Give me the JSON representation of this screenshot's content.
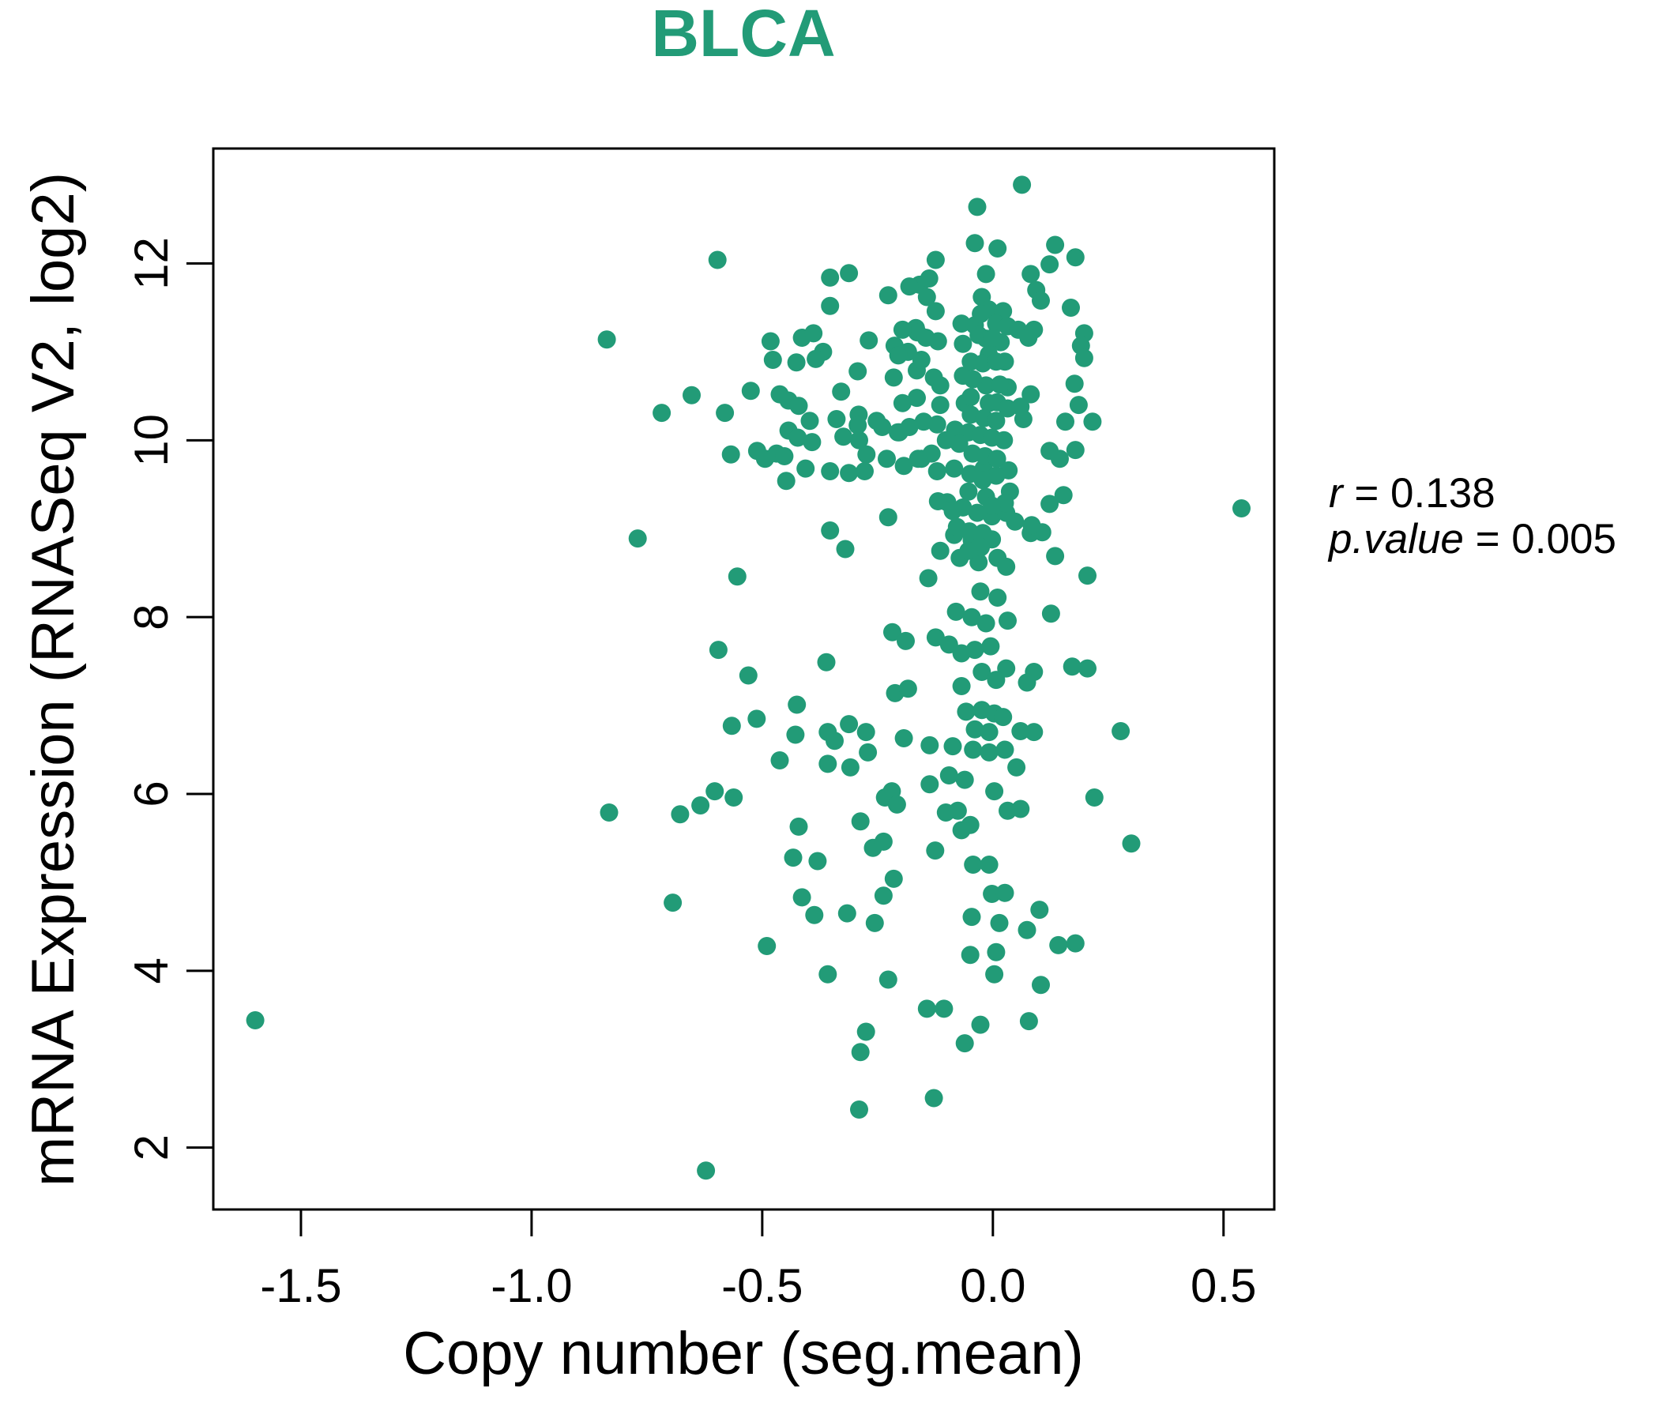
{
  "title": "BLCA",
  "colors": {
    "accent": "#229b77",
    "point": "#229b77",
    "axis": "#000000",
    "background": "#ffffff"
  },
  "stats": {
    "r_label": "r",
    "r_value": " = 0.138",
    "p_label": "p.value",
    "p_value": " = 0.005"
  },
  "chart_data": {
    "type": "scatter",
    "title": "BLCA",
    "xlabel": "Copy number (seg.mean)",
    "ylabel": "mRNA Expression (RNASeq V2, log2)",
    "xlim": [
      -1.69,
      0.61
    ],
    "ylim": [
      1.3,
      13.3
    ],
    "x_ticks": [
      "-1.5",
      "-1.0",
      "-0.5",
      "0.0",
      "0.5"
    ],
    "x_tick_values": [
      -1.5,
      -1.0,
      -0.5,
      0.0,
      0.5
    ],
    "y_ticks": [
      "2",
      "4",
      "6",
      "8",
      "10",
      "12"
    ],
    "y_tick_values": [
      2,
      4,
      6,
      8,
      10,
      12
    ],
    "grid": false,
    "legend": "none",
    "marker": "filled-circle",
    "point_radius_px": 11.5,
    "annotations": [
      "r = 0.138",
      "p.value = 0.005"
    ],
    "correlation": {
      "r": 0.138,
      "p_value": 0.005
    },
    "points": [
      [
        -0.597,
        12.04
      ],
      [
        -0.837,
        11.14
      ],
      [
        -0.482,
        11.12
      ],
      [
        -0.414,
        11.16
      ],
      [
        -0.389,
        11.21
      ],
      [
        -0.368,
        11.0
      ],
      [
        -0.426,
        10.88
      ],
      [
        -0.477,
        10.91
      ],
      [
        -0.384,
        10.92
      ],
      [
        -0.269,
        11.13
      ],
      [
        -0.213,
        11.07
      ],
      [
        -0.184,
        11.0
      ],
      [
        -0.167,
        11.27
      ],
      [
        -0.525,
        10.56
      ],
      [
        -0.462,
        10.52
      ],
      [
        -0.443,
        10.45
      ],
      [
        -0.421,
        10.39
      ],
      [
        -0.653,
        10.51
      ],
      [
        -0.718,
        10.31
      ],
      [
        -0.581,
        10.31
      ],
      [
        -0.329,
        10.55
      ],
      [
        -0.291,
        10.29
      ],
      [
        -0.24,
        10.15
      ],
      [
        -0.397,
        10.22
      ],
      [
        -0.443,
        10.11
      ],
      [
        -0.423,
        10.03
      ],
      [
        -0.392,
        9.98
      ],
      [
        -0.324,
        10.04
      ],
      [
        -0.29,
        10.0
      ],
      [
        -0.568,
        9.84
      ],
      [
        -0.511,
        9.88
      ],
      [
        -0.494,
        9.79
      ],
      [
        -0.469,
        9.85
      ],
      [
        -0.452,
        9.82
      ],
      [
        -0.312,
        9.63
      ],
      [
        -0.274,
        9.84
      ],
      [
        -0.448,
        9.54
      ],
      [
        -0.77,
        8.89
      ],
      [
        -0.554,
        8.46
      ],
      [
        -0.595,
        7.63
      ],
      [
        -0.53,
        7.34
      ],
      [
        -0.566,
        6.77
      ],
      [
        -0.562,
        5.96
      ],
      [
        -0.603,
        6.03
      ],
      [
        -0.634,
        5.87
      ],
      [
        -0.678,
        5.77
      ],
      [
        -0.832,
        5.79
      ],
      [
        -0.694,
        4.77
      ],
      [
        -1.599,
        3.44
      ],
      [
        -0.622,
        1.74
      ],
      [
        0.063,
        12.89
      ],
      [
        -0.034,
        12.64
      ],
      [
        -0.039,
        12.23
      ],
      [
        0.01,
        12.17
      ],
      [
        0.135,
        12.21
      ],
      [
        0.179,
        12.07
      ],
      [
        0.123,
        11.99
      ],
      [
        -0.124,
        12.04
      ],
      [
        -0.353,
        11.84
      ],
      [
        -0.312,
        11.89
      ],
      [
        -0.015,
        11.88
      ],
      [
        0.082,
        11.88
      ],
      [
        0.094,
        11.7
      ],
      [
        -0.227,
        11.64
      ],
      [
        -0.159,
        11.76
      ],
      [
        -0.143,
        11.62
      ],
      [
        -0.124,
        11.46
      ],
      [
        -0.024,
        11.62
      ],
      [
        -0.009,
        11.48
      ],
      [
        0.022,
        11.46
      ],
      [
        0.104,
        11.58
      ],
      [
        0.169,
        11.5
      ],
      [
        -0.353,
        11.52
      ],
      [
        -0.068,
        11.32
      ],
      [
        -0.039,
        11.3
      ],
      [
        0.007,
        11.32
      ],
      [
        0.032,
        11.29
      ],
      [
        0.089,
        11.25
      ],
      [
        0.198,
        11.21
      ],
      [
        -0.065,
        11.09
      ],
      [
        -0.015,
        11.15
      ],
      [
        0.017,
        11.11
      ],
      [
        -0.009,
        10.97
      ],
      [
        0.026,
        10.89
      ],
      [
        0.191,
        11.07
      ],
      [
        0.198,
        10.93
      ],
      [
        -0.293,
        10.78
      ],
      [
        -0.215,
        10.71
      ],
      [
        -0.165,
        10.79
      ],
      [
        -0.114,
        10.62
      ],
      [
        -0.065,
        10.73
      ],
      [
        -0.015,
        10.62
      ],
      [
        0.032,
        10.6
      ],
      [
        0.082,
        10.52
      ],
      [
        -0.009,
        10.42
      ],
      [
        -0.061,
        10.42
      ],
      [
        -0.114,
        10.4
      ],
      [
        -0.165,
        10.48
      ],
      [
        -0.196,
        10.42
      ],
      [
        -0.339,
        10.24
      ],
      [
        0.066,
        10.24
      ],
      [
        0.157,
        10.21
      ],
      [
        0.216,
        10.21
      ],
      [
        0.145,
        9.79
      ],
      [
        0.179,
        9.89
      ],
      [
        -0.406,
        9.68
      ],
      [
        -0.353,
        9.65
      ],
      [
        -0.278,
        9.65
      ],
      [
        -0.23,
        9.79
      ],
      [
        -0.193,
        9.71
      ],
      [
        -0.155,
        9.79
      ],
      [
        -0.121,
        9.65
      ],
      [
        -0.084,
        9.68
      ],
      [
        -0.049,
        9.62
      ],
      [
        -0.02,
        9.68
      ],
      [
        -0.053,
        9.42
      ],
      [
        -0.015,
        9.36
      ],
      [
        -0.099,
        9.3
      ],
      [
        -0.065,
        9.24
      ],
      [
        -0.034,
        9.18
      ],
      [
        -0.002,
        9.14
      ],
      [
        0.029,
        9.18
      ],
      [
        0.048,
        9.08
      ],
      [
        -0.227,
        9.13
      ],
      [
        0.123,
        9.28
      ],
      [
        0.539,
        9.23
      ],
      [
        -0.084,
        8.93
      ],
      [
        -0.046,
        8.87
      ],
      [
        -0.002,
        8.88
      ],
      [
        0.082,
        8.95
      ],
      [
        0.107,
        8.96
      ],
      [
        -0.114,
        8.75
      ],
      [
        -0.072,
        8.67
      ],
      [
        -0.031,
        8.62
      ],
      [
        0.01,
        8.67
      ],
      [
        0.029,
        8.57
      ],
      [
        -0.14,
        8.44
      ],
      [
        -0.353,
        8.98
      ],
      [
        -0.32,
        8.77
      ],
      [
        -0.027,
        8.29
      ],
      [
        0.01,
        8.22
      ],
      [
        -0.08,
        8.06
      ],
      [
        -0.046,
        8.0
      ],
      [
        -0.015,
        7.93
      ],
      [
        0.032,
        7.96
      ],
      [
        0.205,
        8.47
      ],
      [
        0.126,
        8.04
      ],
      [
        -0.218,
        7.83
      ],
      [
        -0.189,
        7.73
      ],
      [
        -0.124,
        7.77
      ],
      [
        -0.095,
        7.69
      ],
      [
        -0.068,
        7.59
      ],
      [
        -0.039,
        7.63
      ],
      [
        -0.005,
        7.67
      ],
      [
        0.029,
        7.42
      ],
      [
        0.089,
        7.38
      ],
      [
        0.172,
        7.44
      ],
      [
        0.205,
        7.42
      ],
      [
        -0.024,
        7.38
      ],
      [
        -0.361,
        7.49
      ],
      [
        -0.293,
        10.17
      ],
      [
        -0.252,
        10.22
      ],
      [
        -0.203,
        10.09
      ],
      [
        -0.138,
        11.83
      ],
      [
        -0.181,
        11.74
      ],
      [
        -0.026,
        11.43
      ],
      [
        -0.164,
        11.22
      ],
      [
        -0.196,
        11.25
      ],
      [
        -0.145,
        11.16
      ],
      [
        -0.119,
        11.12
      ],
      [
        -0.031,
        11.19
      ],
      [
        0.0,
        11.16
      ],
      [
        0.055,
        11.25
      ],
      [
        0.077,
        11.16
      ],
      [
        -0.205,
        10.96
      ],
      [
        -0.155,
        10.91
      ],
      [
        -0.128,
        10.71
      ],
      [
        -0.048,
        10.89
      ],
      [
        -0.022,
        10.87
      ],
      [
        0.007,
        10.89
      ],
      [
        -0.043,
        10.69
      ],
      [
        0.015,
        10.63
      ],
      [
        -0.048,
        10.49
      ],
      [
        0.009,
        10.43
      ],
      [
        -0.048,
        10.29
      ],
      [
        -0.019,
        10.25
      ],
      [
        0.007,
        10.22
      ],
      [
        0.032,
        10.36
      ],
      [
        0.06,
        10.38
      ],
      [
        -0.082,
        10.12
      ],
      [
        -0.053,
        10.09
      ],
      [
        -0.027,
        10.06
      ],
      [
        -0.002,
        10.03
      ],
      [
        0.024,
        10.0
      ],
      [
        -0.121,
        10.18
      ],
      [
        -0.15,
        10.21
      ],
      [
        -0.181,
        10.15
      ],
      [
        -0.206,
        10.09
      ],
      [
        -0.102,
        10.0
      ],
      [
        -0.073,
        9.96
      ],
      [
        -0.044,
        9.85
      ],
      [
        -0.017,
        9.82
      ],
      [
        0.009,
        9.79
      ],
      [
        -0.133,
        9.85
      ],
      [
        -0.162,
        9.79
      ],
      [
        0.034,
        9.66
      ],
      [
        0.007,
        9.6
      ],
      [
        -0.022,
        9.55
      ],
      [
        0.037,
        9.42
      ],
      [
        0.026,
        9.29
      ],
      [
        -0.002,
        9.26
      ],
      [
        -0.119,
        9.31
      ],
      [
        0.084,
        9.04
      ],
      [
        0.177,
        10.64
      ],
      [
        0.186,
        10.4
      ],
      [
        0.123,
        9.88
      ],
      [
        0.153,
        9.38
      ],
      [
        -0.078,
        9.02
      ],
      [
        -0.051,
        8.97
      ],
      [
        -0.022,
        8.95
      ],
      [
        -0.026,
        8.79
      ],
      [
        -0.053,
        8.75
      ],
      [
        0.135,
        8.69
      ],
      [
        -0.087,
        9.2
      ],
      [
        -0.512,
        6.85
      ],
      [
        -0.425,
        7.01
      ],
      [
        -0.428,
        6.67
      ],
      [
        -0.462,
        6.38
      ],
      [
        -0.358,
        6.7
      ],
      [
        -0.343,
        6.6
      ],
      [
        -0.312,
        6.79
      ],
      [
        -0.275,
        6.7
      ],
      [
        -0.271,
        6.47
      ],
      [
        -0.358,
        6.34
      ],
      [
        -0.309,
        6.3
      ],
      [
        -0.212,
        7.14
      ],
      [
        -0.184,
        7.19
      ],
      [
        -0.068,
        7.22
      ],
      [
        0.007,
        7.29
      ],
      [
        0.074,
        7.26
      ],
      [
        -0.058,
        6.93
      ],
      [
        -0.024,
        6.95
      ],
      [
        0.003,
        6.91
      ],
      [
        0.022,
        6.87
      ],
      [
        -0.039,
        6.73
      ],
      [
        -0.008,
        6.7
      ],
      [
        0.06,
        6.71
      ],
      [
        0.089,
        6.7
      ],
      [
        0.277,
        6.71
      ],
      [
        -0.193,
        6.63
      ],
      [
        -0.137,
        6.55
      ],
      [
        -0.087,
        6.54
      ],
      [
        -0.043,
        6.5
      ],
      [
        -0.008,
        6.47
      ],
      [
        0.026,
        6.5
      ],
      [
        0.051,
        6.3
      ],
      [
        -0.095,
        6.21
      ],
      [
        -0.061,
        6.16
      ],
      [
        -0.137,
        6.11
      ],
      [
        -0.102,
        5.79
      ],
      [
        -0.076,
        5.81
      ],
      [
        -0.049,
        5.65
      ],
      [
        0.003,
        6.03
      ],
      [
        0.032,
        5.81
      ],
      [
        0.06,
        5.83
      ],
      [
        -0.068,
        5.59
      ],
      [
        -0.043,
        5.2
      ],
      [
        -0.125,
        5.36
      ],
      [
        -0.219,
        6.03
      ],
      [
        -0.234,
        5.96
      ],
      [
        -0.208,
        5.88
      ],
      [
        -0.287,
        5.69
      ],
      [
        -0.421,
        5.63
      ],
      [
        -0.433,
        5.28
      ],
      [
        -0.38,
        5.24
      ],
      [
        -0.26,
        5.39
      ],
      [
        -0.237,
        5.46
      ],
      [
        -0.414,
        4.83
      ],
      [
        -0.387,
        4.63
      ],
      [
        -0.316,
        4.65
      ],
      [
        -0.256,
        4.54
      ],
      [
        -0.237,
        4.85
      ],
      [
        -0.215,
        5.04
      ],
      [
        -0.046,
        4.61
      ],
      [
        -0.002,
        4.87
      ],
      [
        0.026,
        4.88
      ],
      [
        -0.008,
        5.2
      ],
      [
        0.014,
        4.54
      ],
      [
        0.101,
        4.69
      ],
      [
        0.074,
        4.46
      ],
      [
        0.22,
        5.96
      ],
      [
        0.3,
        5.44
      ],
      [
        0.142,
        4.29
      ],
      [
        0.179,
        4.31
      ],
      [
        -0.49,
        4.28
      ],
      [
        -0.358,
        3.96
      ],
      [
        -0.227,
        3.9
      ],
      [
        -0.049,
        4.18
      ],
      [
        0.007,
        4.21
      ],
      [
        0.003,
        3.96
      ],
      [
        0.104,
        3.84
      ],
      [
        -0.143,
        3.57
      ],
      [
        -0.106,
        3.57
      ],
      [
        -0.027,
        3.39
      ],
      [
        0.078,
        3.43
      ],
      [
        -0.275,
        3.31
      ],
      [
        -0.287,
        3.08
      ],
      [
        -0.061,
        3.18
      ],
      [
        -0.128,
        2.56
      ],
      [
        -0.29,
        2.43
      ]
    ]
  }
}
